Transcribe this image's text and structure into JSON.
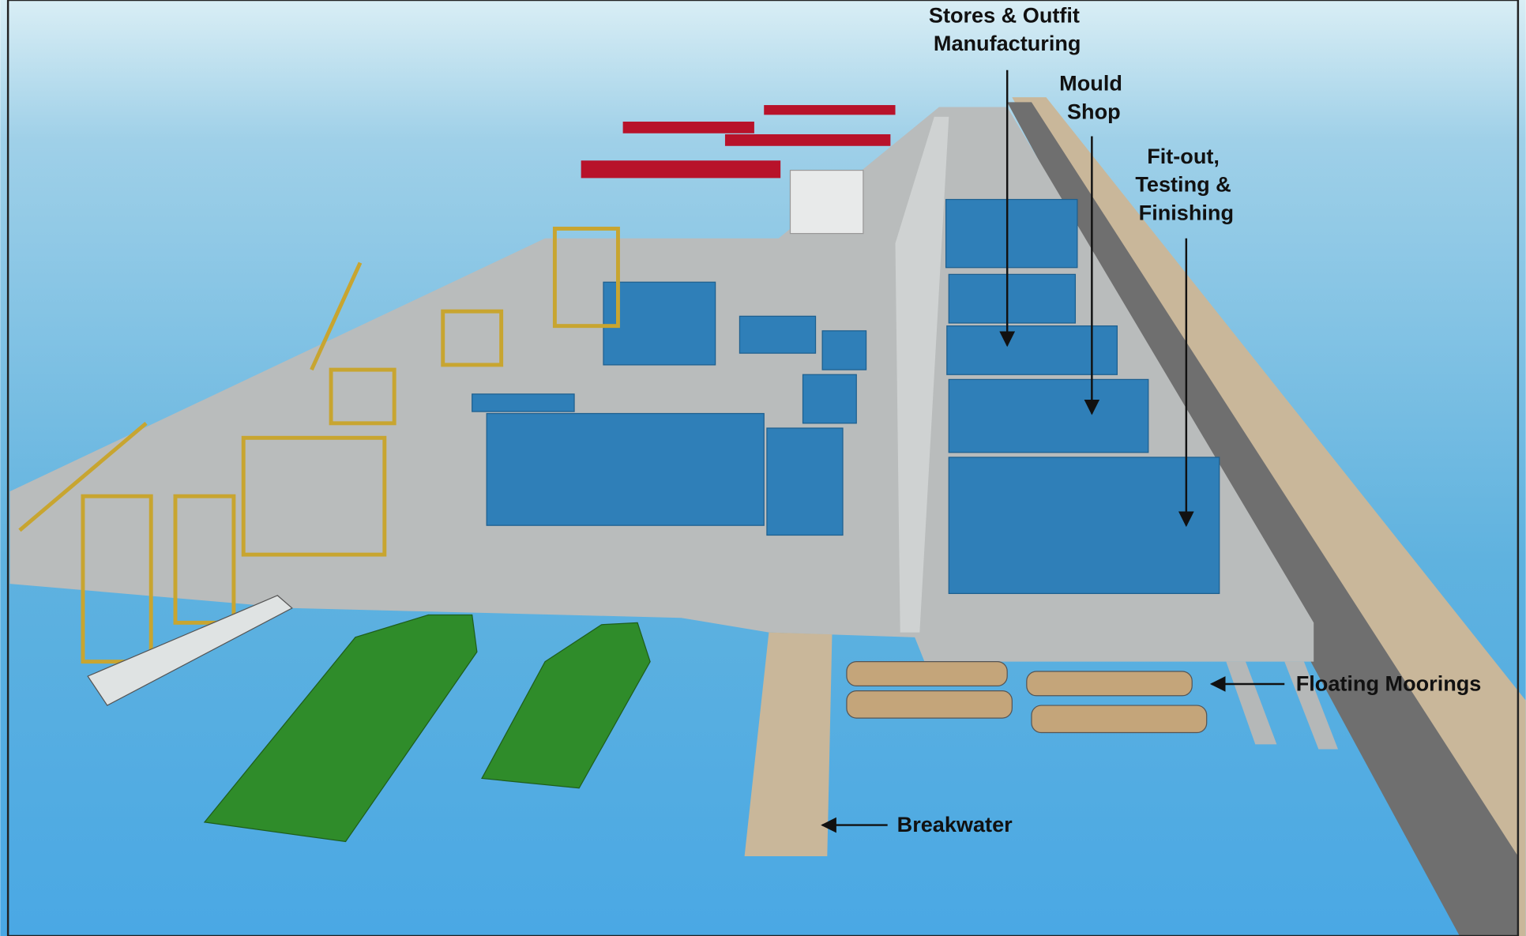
{
  "labels": [
    {
      "lines": [
        "Stores & Outfit",
        "Manufacturing"
      ]
    },
    {
      "lines": [
        "Mould",
        "Shop"
      ]
    },
    {
      "lines": [
        "Fit-out,",
        "Testing &",
        "Finishing"
      ]
    },
    {
      "lines": [
        "Floating Moorings"
      ]
    },
    {
      "lines": [
        "Breakwater"
      ]
    }
  ]
}
